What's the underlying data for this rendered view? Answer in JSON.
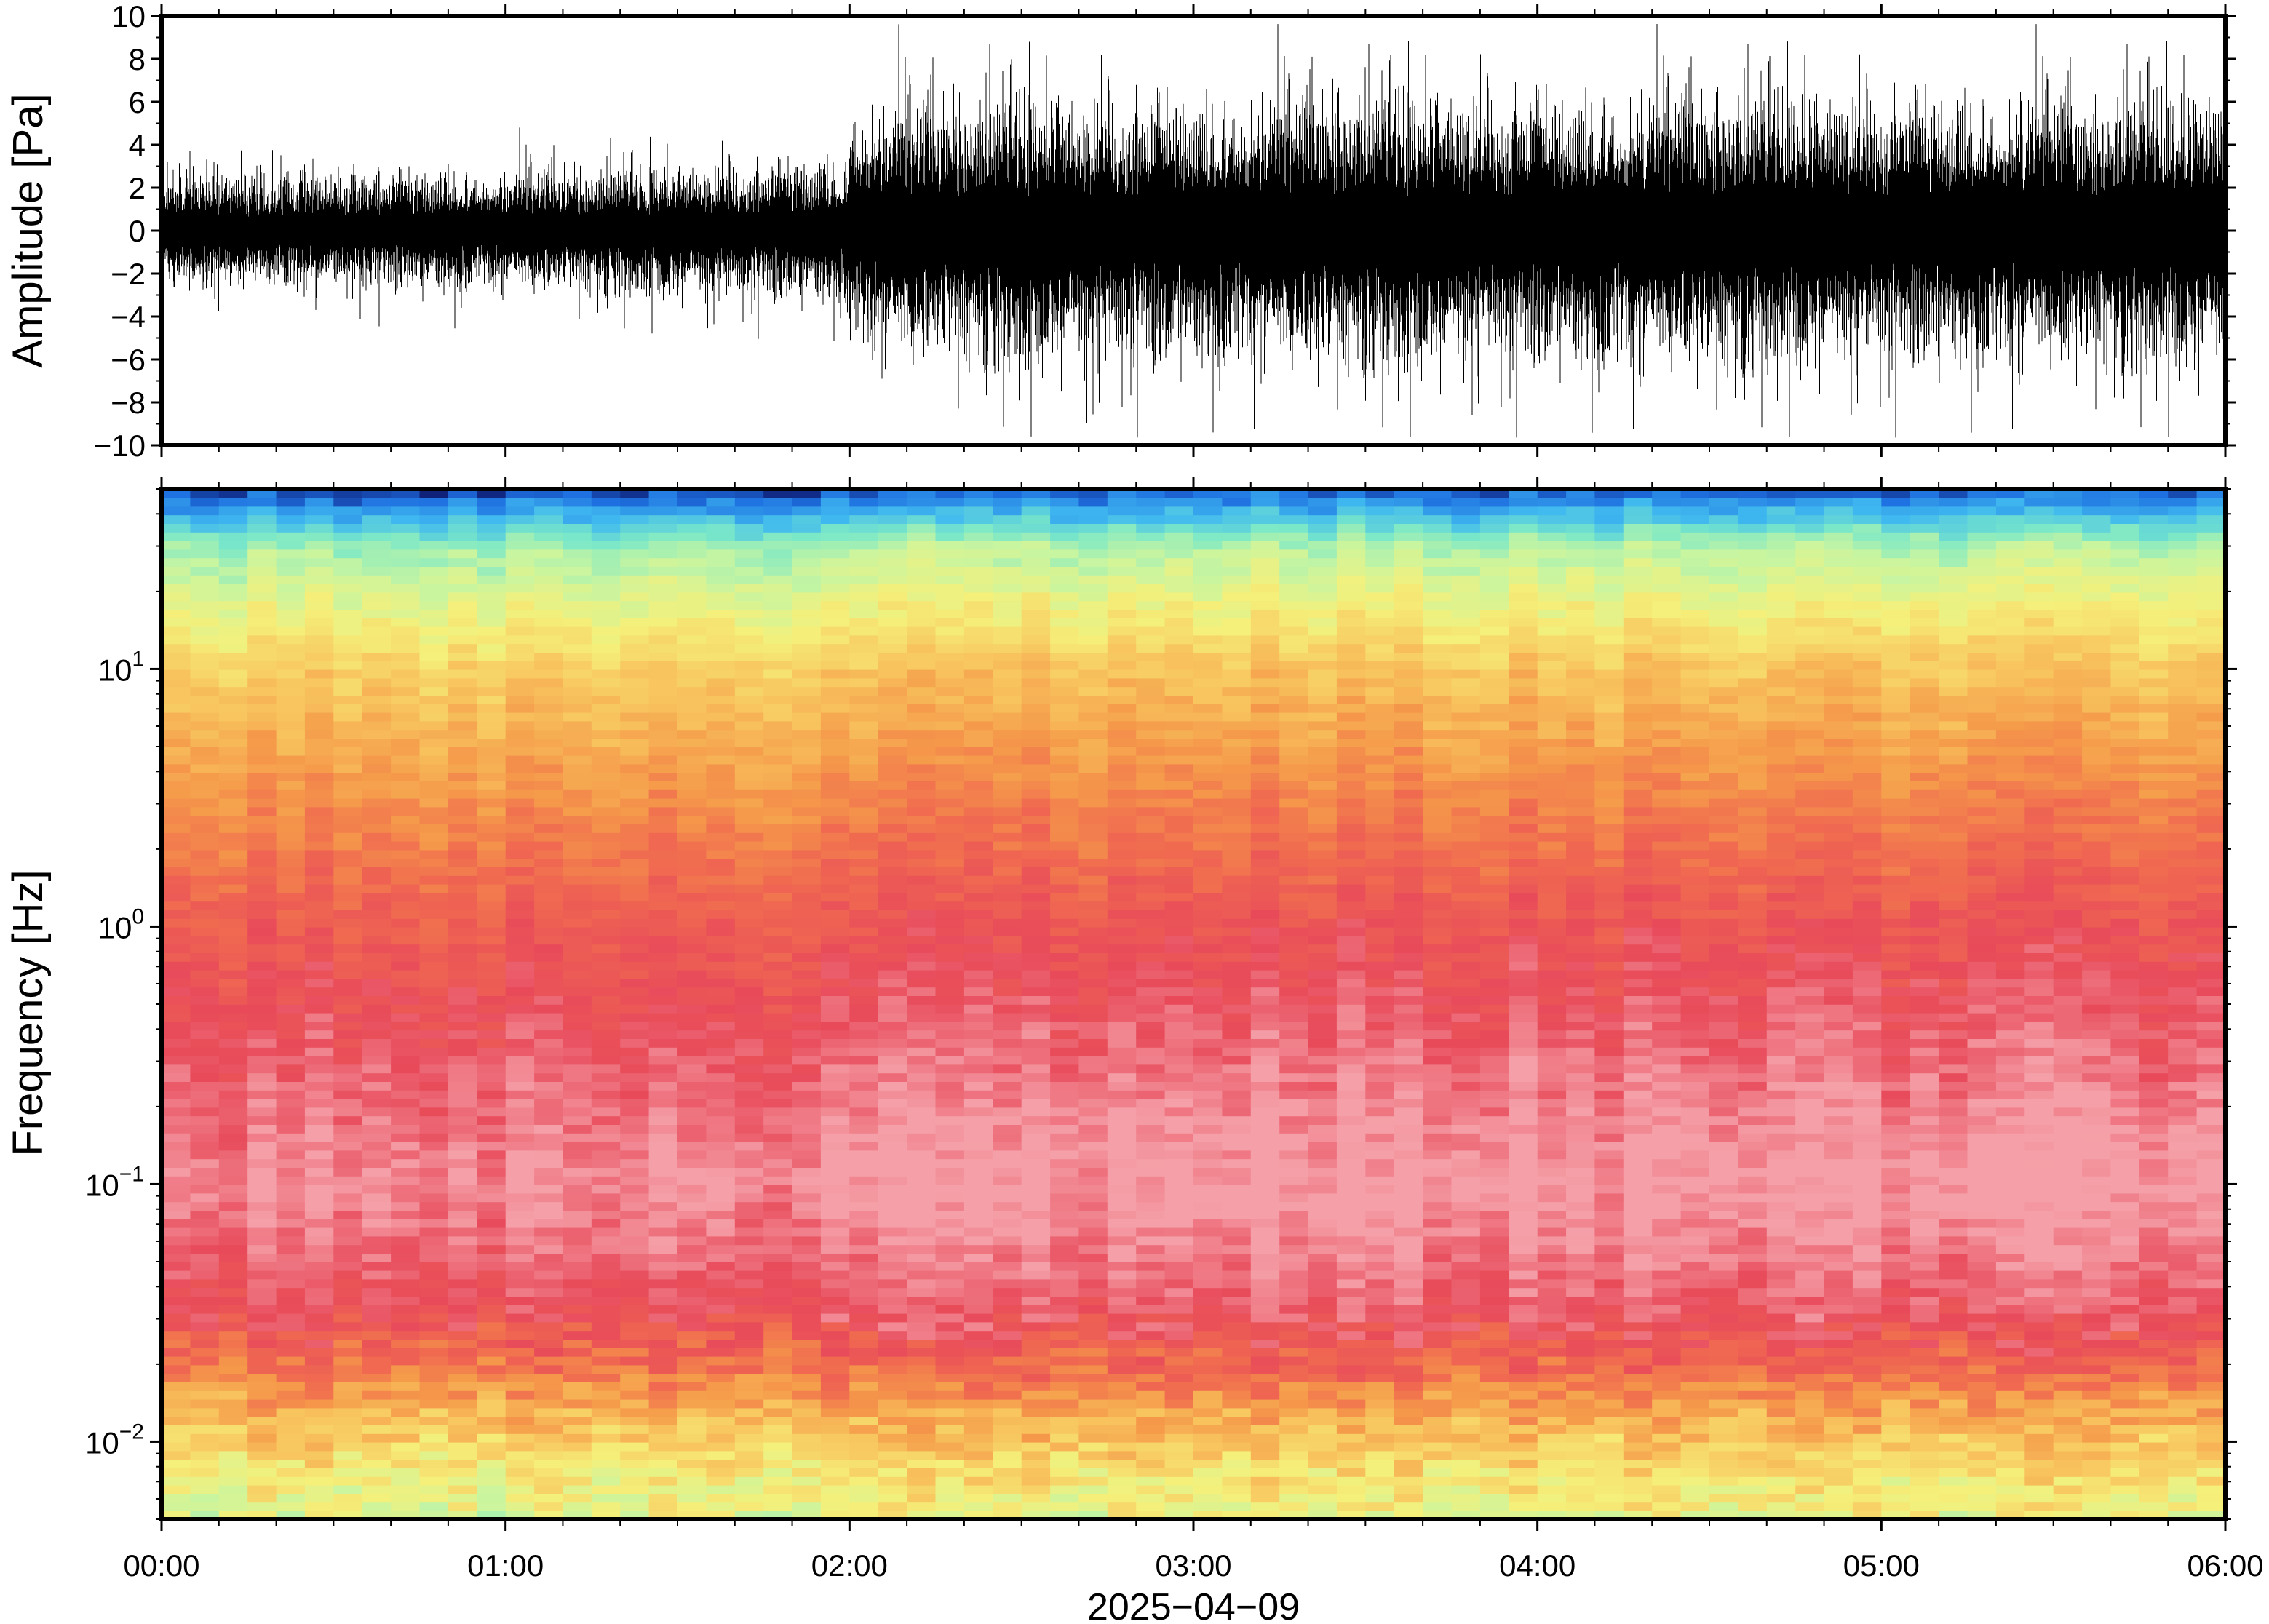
{
  "chart_data": [
    {
      "type": "line",
      "panel": "waveform",
      "ylabel": "Amplitude [Pa]",
      "xlim": [
        "00:00",
        "06:00"
      ],
      "ylim": [
        -10,
        10
      ],
      "yticks": [
        -10,
        -8,
        -6,
        -4,
        -2,
        0,
        2,
        4,
        6,
        8,
        10
      ],
      "ytick_labels": [
        "−10",
        "−8",
        "−6",
        "−4",
        "−2",
        "0",
        "2",
        "4",
        "6",
        "8",
        "10"
      ],
      "envelope": {
        "x_hours": [
          0.0,
          0.5,
          1.0,
          1.5,
          1.99,
          2.0,
          2.5,
          3.0,
          3.5,
          4.0,
          4.5,
          5.0,
          5.5,
          6.0
        ],
        "typical_amplitude": [
          1.8,
          1.8,
          1.9,
          2.0,
          2.2,
          4.0,
          4.2,
          4.1,
          4.3,
          4.2,
          4.3,
          4.2,
          4.2,
          4.3
        ],
        "peak_amplitude": [
          4.0,
          4.5,
          5.0,
          5.0,
          5.5,
          10,
          10,
          10,
          10,
          10,
          10,
          10,
          10,
          10
        ]
      },
      "grid": false,
      "color": "#000000"
    },
    {
      "type": "heatmap",
      "panel": "spectrogram",
      "ylabel": "Frequency [Hz]",
      "xlabel": "2025−04−09",
      "xlim": [
        "00:00",
        "06:00"
      ],
      "ylim": [
        0.005,
        50
      ],
      "yscale": "log",
      "yticks": [
        {
          "value": 0.01,
          "base": "10",
          "exp": "−2"
        },
        {
          "value": 0.1,
          "base": "10",
          "exp": "−1"
        },
        {
          "value": 1,
          "base": "10",
          "exp": "0"
        },
        {
          "value": 10,
          "base": "10",
          "exp": "1"
        }
      ],
      "xticks": [
        "00:00",
        "01:00",
        "02:00",
        "03:00",
        "04:00",
        "05:00",
        "06:00"
      ],
      "colormap": "rainbow",
      "colormap_stops": [
        "#0a0a5a",
        "#1e6fe0",
        "#3fb8f0",
        "#7ae8c8",
        "#c8f5a0",
        "#f5f07a",
        "#f8c860",
        "#f59a4a",
        "#f06a50",
        "#e84a5a",
        "#f5a0a8"
      ],
      "intensity_profile": {
        "freq_hz": [
          0.005,
          0.008,
          0.012,
          0.02,
          0.03,
          0.05,
          0.1,
          0.3,
          1,
          3,
          10,
          30,
          50
        ],
        "level": [
          0.45,
          0.52,
          0.62,
          0.78,
          0.88,
          0.93,
          0.98,
          0.92,
          0.84,
          0.72,
          0.58,
          0.35,
          0.05
        ]
      },
      "grid": false
    }
  ],
  "colors": {
    "frame": "#000000",
    "background": "#ffffff"
  }
}
